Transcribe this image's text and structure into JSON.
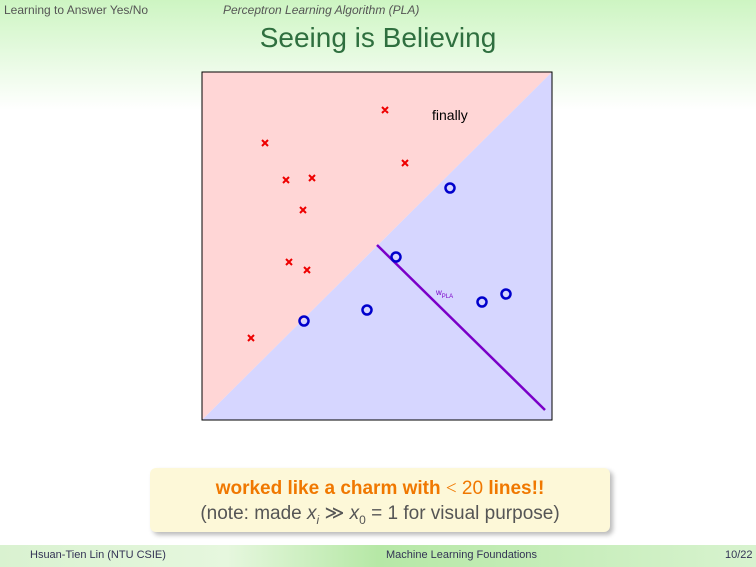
{
  "header": {
    "section": "Learning to Answer Yes/No",
    "subsection": "Perceptron Learning Algorithm (PLA)",
    "title": "Seeing is Believing"
  },
  "figure": {
    "caption": "finally",
    "weight_label": "w",
    "weight_subscript": "PLA"
  },
  "callout": {
    "line1": [
      "worked like a charm with",
      "<",
      "20",
      "lines!!"
    ],
    "line2": [
      "(note: made",
      "x",
      "i",
      "≫",
      "x",
      "0",
      "=",
      "1",
      "for visual purpose)"
    ]
  },
  "footer": {
    "author": "Hsuan-Tien Lin (NTU CSIE)",
    "course": "Machine Learning Foundations",
    "page": "10/22"
  }
}
